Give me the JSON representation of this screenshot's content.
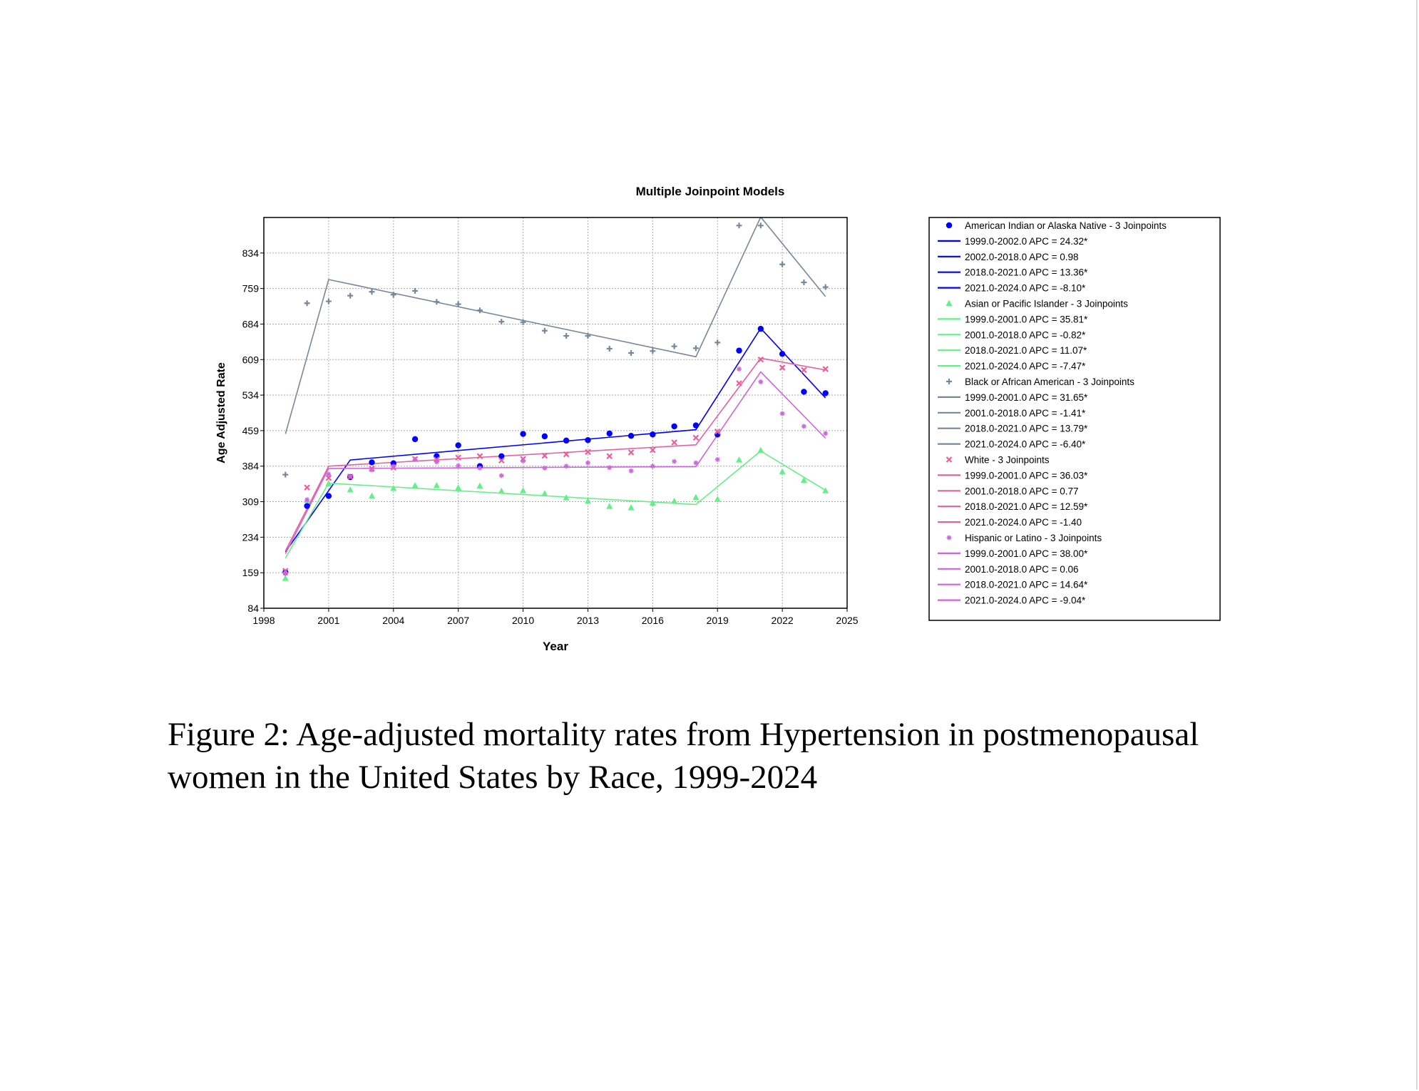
{
  "caption": "Figure 2: Age-adjusted mortality rates from Hypertension in postmenopausal women in the United States by Race, 1999-2024",
  "chart_data": {
    "type": "scatter",
    "title": "Multiple Joinpoint Models",
    "xlabel": "Year",
    "ylabel": "Age Adjusted Rate",
    "xlim": [
      1998,
      2025
    ],
    "ylim": [
      84,
      909
    ],
    "x_ticks": [
      1998,
      2001,
      2004,
      2007,
      2010,
      2013,
      2016,
      2019,
      2022,
      2025
    ],
    "y_ticks": [
      84,
      159,
      234,
      309,
      384,
      459,
      534,
      609,
      684,
      759,
      834
    ],
    "grid": true,
    "legend_position": "right",
    "series": [
      {
        "name": "American Indian or Alaska Native - 3 Joinpoints",
        "color": "#0000ff",
        "marker": "circle",
        "x": [
          1999,
          2000,
          2001,
          2002,
          2003,
          2004,
          2005,
          2006,
          2007,
          2008,
          2009,
          2010,
          2011,
          2012,
          2013,
          2014,
          2015,
          2016,
          2017,
          2018,
          2019,
          2020,
          2021,
          2022,
          2023,
          2024
        ],
        "y": [
          160,
          300,
          321,
          361,
          392,
          390,
          441,
          405,
          428,
          384,
          405,
          452,
          447,
          438,
          439,
          453,
          448,
          451,
          468,
          470,
          451,
          628,
          674,
          621,
          541,
          538
        ],
        "fit_x": [
          1999,
          2002,
          2018,
          2021,
          2024
        ],
        "fit_y": [
          203,
          397,
          461,
          675,
          528
        ],
        "segments": [
          "1999.0-2002.0 APC  = 24.32*",
          "2002.0-2018.0 APC  =  0.98",
          "2018.0-2021.0 APC  = 13.36*",
          "2021.0-2024.0 APC  = -8.10*"
        ]
      },
      {
        "name": "Asian or Pacific Islander - 3 Joinpoints",
        "color": "#66ee88",
        "marker": "triangle",
        "x": [
          1999,
          2000,
          2001,
          2002,
          2003,
          2004,
          2005,
          2006,
          2007,
          2008,
          2009,
          2010,
          2011,
          2012,
          2013,
          2014,
          2015,
          2016,
          2017,
          2018,
          2019,
          2020,
          2021,
          2022,
          2023,
          2024
        ],
        "y": [
          147,
          312,
          347,
          334,
          321,
          337,
          343,
          343,
          338,
          342,
          331,
          332,
          326,
          317,
          310,
          299,
          296,
          306,
          310,
          318,
          314,
          397,
          417,
          372,
          354,
          332
        ],
        "fit_x": [
          1999,
          2001,
          2018,
          2021,
          2024
        ],
        "fit_y": [
          190,
          348,
          303,
          416,
          333
        ],
        "segments": [
          "1999.0-2001.0 APC  = 35.81*",
          "2001.0-2018.0 APC  = -0.82*",
          "2018.0-2021.0 APC  = 11.07*",
          "2021.0-2024.0 APC  = -7.47*"
        ]
      },
      {
        "name": "Black or African American - 3 Joinpoints",
        "color": "#778899",
        "marker": "plus",
        "x": [
          1999,
          2000,
          2001,
          2002,
          2003,
          2004,
          2005,
          2006,
          2007,
          2008,
          2009,
          2010,
          2011,
          2012,
          2013,
          2014,
          2015,
          2016,
          2017,
          2018,
          2019,
          2020,
          2021,
          2022,
          2023,
          2024
        ],
        "y": [
          366,
          728,
          732,
          744,
          752,
          746,
          754,
          731,
          726,
          713,
          689,
          688,
          670,
          659,
          659,
          632,
          623,
          627,
          637,
          633,
          645,
          892,
          892,
          810,
          772,
          762
        ],
        "fit_x": [
          1999,
          2001,
          2018,
          2021,
          2024
        ],
        "fit_y": [
          452,
          778,
          615,
          910,
          742
        ],
        "segments": [
          "1999.0-2001.0 APC  = 31.65*",
          "2001.0-2018.0 APC  = -1.41*",
          "2018.0-2021.0 APC  = 13.79*",
          "2021.0-2024.0 APC  = -6.40*"
        ]
      },
      {
        "name": "White - 3 Joinpoints",
        "color": "#e8609a",
        "marker": "x",
        "x": [
          1999,
          2000,
          2001,
          2002,
          2003,
          2004,
          2005,
          2006,
          2007,
          2008,
          2009,
          2010,
          2011,
          2012,
          2013,
          2014,
          2015,
          2016,
          2017,
          2018,
          2019,
          2020,
          2021,
          2022,
          2023,
          2024
        ],
        "y": [
          163,
          339,
          359,
          362,
          379,
          381,
          399,
          398,
          402,
          405,
          396,
          399,
          406,
          409,
          414,
          405,
          413,
          418,
          434,
          444,
          457,
          559,
          609,
          592,
          587,
          589
        ],
        "fit_x": [
          1999,
          2001,
          2018,
          2021,
          2024
        ],
        "fit_y": [
          205,
          384,
          429,
          612,
          587
        ],
        "segments": [
          "1999.0-2001.0 APC  = 36.03*",
          "2001.0-2018.0 APC  =  0.77",
          "2018.0-2021.0 APC  = 12.59*",
          "2021.0-2024.0 APC  = -1.40"
        ]
      },
      {
        "name": "Hispanic or Latino - 3 Joinpoints",
        "color": "#cc66dd",
        "marker": "star",
        "x": [
          1999,
          2000,
          2001,
          2002,
          2003,
          2004,
          2005,
          2006,
          2007,
          2008,
          2009,
          2010,
          2011,
          2012,
          2013,
          2014,
          2015,
          2016,
          2017,
          2018,
          2019,
          2020,
          2021,
          2022,
          2023,
          2024
        ],
        "y": [
          157,
          313,
          367,
          362,
          376,
          384,
          398,
          393,
          385,
          380,
          364,
          395,
          380,
          384,
          391,
          381,
          374,
          384,
          394,
          391,
          398,
          589,
          562,
          495,
          468,
          453
        ],
        "fit_x": [
          1999,
          2001,
          2018,
          2021,
          2024
        ],
        "fit_y": [
          199,
          379,
          383,
          583,
          443
        ],
        "segments": [
          "1999.0-2001.0 APC  = 38.00*",
          "2001.0-2018.0 APC  =  0.06",
          "2018.0-2021.0 APC  = 14.64*",
          "2021.0-2024.0 APC  = -9.04*"
        ]
      }
    ]
  }
}
